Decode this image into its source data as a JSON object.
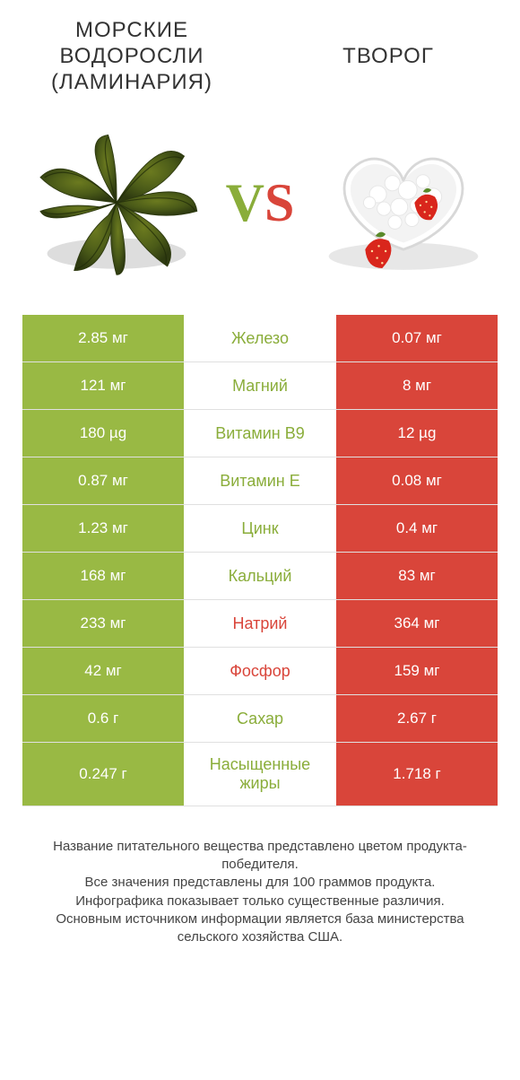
{
  "colors": {
    "left": "#99b944",
    "right": "#d9453a",
    "mid_default": "#8aad3a",
    "row_border": "#e0e0e0",
    "bg": "#ffffff"
  },
  "header": {
    "left_line1": "МОРСКИЕ",
    "left_line2": "ВОДОРОСЛИ",
    "left_line3": "(ЛАМИНАРИЯ)",
    "right": "ТВОРОГ"
  },
  "vs": {
    "v": "V",
    "s": "S"
  },
  "rows": [
    {
      "left": "2.85 мг",
      "mid": "Железо",
      "right": "0.07 мг",
      "mid_color": "#8aad3a"
    },
    {
      "left": "121 мг",
      "mid": "Магний",
      "right": "8 мг",
      "mid_color": "#8aad3a"
    },
    {
      "left": "180 µg",
      "mid": "Витамин B9",
      "right": "12 µg",
      "mid_color": "#8aad3a"
    },
    {
      "left": "0.87 мг",
      "mid": "Витамин E",
      "right": "0.08 мг",
      "mid_color": "#8aad3a"
    },
    {
      "left": "1.23 мг",
      "mid": "Цинк",
      "right": "0.4 мг",
      "mid_color": "#8aad3a"
    },
    {
      "left": "168 мг",
      "mid": "Кальций",
      "right": "83 мг",
      "mid_color": "#8aad3a"
    },
    {
      "left": "233 мг",
      "mid": "Натрий",
      "right": "364 мг",
      "mid_color": "#d9453a"
    },
    {
      "left": "42 мг",
      "mid": "Фосфор",
      "right": "159 мг",
      "mid_color": "#d9453a"
    },
    {
      "left": "0.6 г",
      "mid": "Сахар",
      "right": "2.67 г",
      "mid_color": "#8aad3a"
    },
    {
      "left": "0.247 г",
      "mid": "Насыщенные жиры",
      "right": "1.718 г",
      "mid_color": "#8aad3a"
    }
  ],
  "notes": {
    "l1": "Название питательного вещества представлено цветом продукта-победителя.",
    "l2": "Все значения представлены для 100 граммов продукта.",
    "l3": "Инфографика показывает только существенные различия.",
    "l4": "Основным источником информации является база министерства сельского хозяйства США."
  }
}
